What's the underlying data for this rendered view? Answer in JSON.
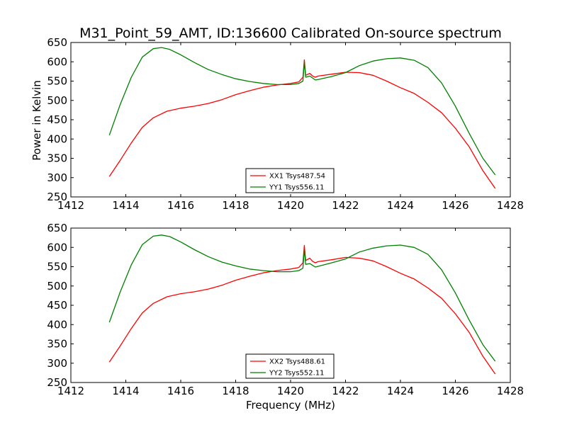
{
  "figure": {
    "title": "M31_Point_59_AMT, ID:136600 Calibrated On-source spectrum",
    "xlabel": "Frequency (MHz)",
    "ylabel": "Power in Kelvin"
  },
  "chart_data": [
    {
      "type": "line",
      "title": "M31_Point_59_AMT, ID:136600 Calibrated On-source spectrum",
      "xlabel": "",
      "ylabel": "Power in Kelvin",
      "xlim": [
        1412,
        1428
      ],
      "ylim": [
        250,
        650
      ],
      "xticks": [
        1412,
        1414,
        1416,
        1418,
        1420,
        1422,
        1424,
        1426,
        1428
      ],
      "yticks": [
        250,
        300,
        350,
        400,
        450,
        500,
        550,
        600,
        650
      ],
      "grid": false,
      "legend_position": "lower-center",
      "series": [
        {
          "name": "XX1 Tsys487.54",
          "color": "#ff0000",
          "x": [
            1413.4,
            1413.8,
            1414.2,
            1414.6,
            1415.0,
            1415.5,
            1416.0,
            1416.5,
            1417.0,
            1417.5,
            1418.0,
            1418.5,
            1419.0,
            1419.5,
            1420.0,
            1420.3,
            1420.45,
            1420.5,
            1420.55,
            1420.7,
            1420.8,
            1420.9,
            1421.0,
            1421.5,
            1422.0,
            1422.5,
            1423.0,
            1423.5,
            1424.0,
            1424.5,
            1425.0,
            1425.5,
            1426.0,
            1426.5,
            1427.0,
            1427.45
          ],
          "y": [
            303,
            345,
            390,
            430,
            455,
            472,
            480,
            485,
            492,
            502,
            515,
            525,
            534,
            540,
            544,
            548,
            560,
            605,
            565,
            570,
            563,
            560,
            563,
            568,
            573,
            572,
            565,
            550,
            533,
            518,
            495,
            468,
            428,
            380,
            318,
            272
          ]
        },
        {
          "name": "YY1 Tsys556.11",
          "color": "#008000",
          "x": [
            1413.4,
            1413.8,
            1414.2,
            1414.6,
            1415.0,
            1415.3,
            1415.6,
            1416.0,
            1416.5,
            1417.0,
            1417.5,
            1418.0,
            1418.5,
            1419.0,
            1419.5,
            1420.0,
            1420.3,
            1420.45,
            1420.5,
            1420.55,
            1420.7,
            1420.9,
            1421.0,
            1421.5,
            1422.0,
            1422.5,
            1423.0,
            1423.5,
            1424.0,
            1424.5,
            1425.0,
            1425.5,
            1426.0,
            1426.5,
            1427.0,
            1427.45
          ],
          "y": [
            410,
            490,
            560,
            612,
            634,
            637,
            632,
            618,
            598,
            580,
            567,
            556,
            549,
            544,
            541,
            541,
            544,
            550,
            600,
            560,
            563,
            553,
            554,
            562,
            572,
            590,
            602,
            608,
            610,
            604,
            585,
            545,
            485,
            415,
            350,
            307
          ]
        }
      ]
    },
    {
      "type": "line",
      "title": "",
      "xlabel": "Frequency (MHz)",
      "ylabel": "",
      "xlim": [
        1412,
        1428
      ],
      "ylim": [
        250,
        650
      ],
      "xticks": [
        1412,
        1414,
        1416,
        1418,
        1420,
        1422,
        1424,
        1426,
        1428
      ],
      "yticks": [
        250,
        300,
        350,
        400,
        450,
        500,
        550,
        600,
        650
      ],
      "grid": false,
      "legend_position": "lower-center",
      "series": [
        {
          "name": "XX2 Tsys488.61",
          "color": "#ff0000",
          "x": [
            1413.4,
            1413.8,
            1414.2,
            1414.6,
            1415.0,
            1415.5,
            1416.0,
            1416.5,
            1417.0,
            1417.5,
            1418.0,
            1418.5,
            1419.0,
            1419.5,
            1420.0,
            1420.3,
            1420.45,
            1420.5,
            1420.55,
            1420.7,
            1420.8,
            1420.9,
            1421.0,
            1421.5,
            1422.0,
            1422.5,
            1423.0,
            1423.5,
            1424.0,
            1424.5,
            1425.0,
            1425.5,
            1426.0,
            1426.5,
            1427.0,
            1427.45
          ],
          "y": [
            303,
            345,
            390,
            430,
            455,
            472,
            480,
            485,
            492,
            502,
            515,
            525,
            534,
            540,
            544,
            548,
            560,
            605,
            566,
            572,
            564,
            560,
            563,
            568,
            574,
            572,
            565,
            550,
            533,
            518,
            495,
            468,
            428,
            380,
            318,
            272
          ]
        },
        {
          "name": "YY2 Tsys552.11",
          "color": "#008000",
          "x": [
            1413.4,
            1413.8,
            1414.2,
            1414.6,
            1415.0,
            1415.3,
            1415.6,
            1416.0,
            1416.5,
            1417.0,
            1417.5,
            1418.0,
            1418.5,
            1419.0,
            1419.5,
            1420.0,
            1420.3,
            1420.45,
            1420.5,
            1420.55,
            1420.7,
            1420.9,
            1421.0,
            1421.5,
            1422.0,
            1422.5,
            1423.0,
            1423.5,
            1424.0,
            1424.5,
            1425.0,
            1425.5,
            1426.0,
            1426.5,
            1427.0,
            1427.45
          ],
          "y": [
            406,
            485,
            555,
            607,
            629,
            632,
            628,
            614,
            594,
            576,
            562,
            552,
            544,
            540,
            537,
            537,
            540,
            546,
            595,
            556,
            558,
            549,
            551,
            560,
            570,
            588,
            598,
            604,
            606,
            600,
            582,
            542,
            482,
            412,
            348,
            305
          ]
        }
      ]
    }
  ]
}
